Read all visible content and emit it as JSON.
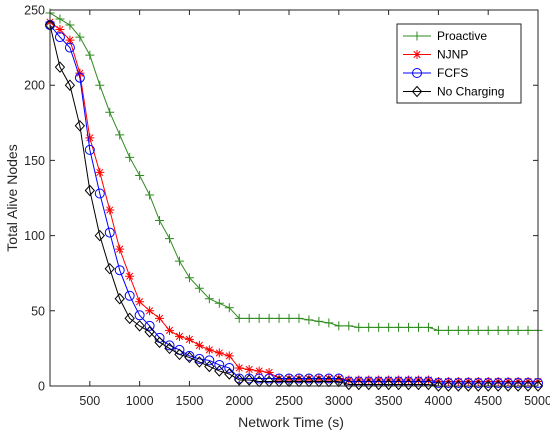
{
  "chart_data": {
    "type": "line",
    "xlabel": "Network Time (s)",
    "ylabel": "Total Alive Nodes",
    "xlim": [
      100,
      5000
    ],
    "ylim": [
      0,
      250
    ],
    "xticks": [
      500,
      1000,
      1500,
      2000,
      2500,
      3000,
      3500,
      4000,
      4500,
      5000
    ],
    "yticks": [
      0,
      50,
      100,
      150,
      200,
      250
    ],
    "grid": false,
    "legend_position": "top-right",
    "series": [
      {
        "name": "Proactive",
        "color": "#2e8b1f",
        "marker": "plus",
        "points": [
          [
            100,
            248
          ],
          [
            200,
            244
          ],
          [
            300,
            240
          ],
          [
            400,
            232
          ],
          [
            500,
            220
          ],
          [
            600,
            200
          ],
          [
            700,
            182
          ],
          [
            800,
            167
          ],
          [
            900,
            152
          ],
          [
            1000,
            140
          ],
          [
            1100,
            127
          ],
          [
            1200,
            110
          ],
          [
            1300,
            98
          ],
          [
            1400,
            83
          ],
          [
            1500,
            72
          ],
          [
            1600,
            65
          ],
          [
            1700,
            58
          ],
          [
            1800,
            55
          ],
          [
            1900,
            52
          ],
          [
            2000,
            45
          ],
          [
            2100,
            45
          ],
          [
            2200,
            45
          ],
          [
            2300,
            45
          ],
          [
            2400,
            45
          ],
          [
            2500,
            45
          ],
          [
            2600,
            45
          ],
          [
            2700,
            44
          ],
          [
            2800,
            43
          ],
          [
            2900,
            42
          ],
          [
            3000,
            40
          ],
          [
            3100,
            40
          ],
          [
            3200,
            39
          ],
          [
            3300,
            39
          ],
          [
            3400,
            39
          ],
          [
            3500,
            39
          ],
          [
            3600,
            39
          ],
          [
            3700,
            39
          ],
          [
            3800,
            39
          ],
          [
            3900,
            39
          ],
          [
            4000,
            37
          ],
          [
            4100,
            37
          ],
          [
            4200,
            37
          ],
          [
            4300,
            37
          ],
          [
            4400,
            37
          ],
          [
            4500,
            37
          ],
          [
            4600,
            37
          ],
          [
            4700,
            37
          ],
          [
            4800,
            37
          ],
          [
            4900,
            37
          ],
          [
            5000,
            37
          ]
        ]
      },
      {
        "name": "NJNP",
        "color": "#ff0000",
        "marker": "star",
        "points": [
          [
            100,
            242
          ],
          [
            200,
            237
          ],
          [
            300,
            230
          ],
          [
            400,
            208
          ],
          [
            500,
            165
          ],
          [
            600,
            142
          ],
          [
            700,
            117
          ],
          [
            800,
            91
          ],
          [
            900,
            73
          ],
          [
            1000,
            56
          ],
          [
            1100,
            50
          ],
          [
            1200,
            45
          ],
          [
            1300,
            37
          ],
          [
            1400,
            33
          ],
          [
            1500,
            31
          ],
          [
            1600,
            27
          ],
          [
            1700,
            24
          ],
          [
            1800,
            22
          ],
          [
            1900,
            20
          ],
          [
            2000,
            12
          ],
          [
            2100,
            11
          ],
          [
            2200,
            10
          ],
          [
            2300,
            9
          ],
          [
            2400,
            5
          ],
          [
            2500,
            5
          ],
          [
            2600,
            5
          ],
          [
            2700,
            5
          ],
          [
            2800,
            5
          ],
          [
            2900,
            5
          ],
          [
            3000,
            5
          ],
          [
            3100,
            4
          ],
          [
            3200,
            4
          ],
          [
            3300,
            4
          ],
          [
            3400,
            4
          ],
          [
            3500,
            4
          ],
          [
            3600,
            4
          ],
          [
            3700,
            4
          ],
          [
            3800,
            4
          ],
          [
            3900,
            4
          ],
          [
            4000,
            3
          ],
          [
            4100,
            3
          ],
          [
            4200,
            3
          ],
          [
            4300,
            3
          ],
          [
            4400,
            3
          ],
          [
            4500,
            3
          ],
          [
            4600,
            3
          ],
          [
            4700,
            3
          ],
          [
            4800,
            3
          ],
          [
            4900,
            3
          ],
          [
            5000,
            3
          ]
        ]
      },
      {
        "name": "FCFS",
        "color": "#0000ff",
        "marker": "circle",
        "points": [
          [
            100,
            240
          ],
          [
            200,
            232
          ],
          [
            300,
            225
          ],
          [
            400,
            205
          ],
          [
            500,
            157
          ],
          [
            600,
            128
          ],
          [
            700,
            102
          ],
          [
            800,
            77
          ],
          [
            900,
            60
          ],
          [
            1000,
            47
          ],
          [
            1100,
            40
          ],
          [
            1200,
            32
          ],
          [
            1300,
            27
          ],
          [
            1400,
            24
          ],
          [
            1500,
            20
          ],
          [
            1600,
            18
          ],
          [
            1700,
            17
          ],
          [
            1800,
            14
          ],
          [
            1900,
            12
          ],
          [
            2000,
            5
          ],
          [
            2100,
            5
          ],
          [
            2200,
            5
          ],
          [
            2300,
            5
          ],
          [
            2400,
            5
          ],
          [
            2500,
            5
          ],
          [
            2600,
            5
          ],
          [
            2700,
            5
          ],
          [
            2800,
            5
          ],
          [
            2900,
            5
          ],
          [
            3000,
            5
          ],
          [
            3100,
            3
          ],
          [
            3200,
            3
          ],
          [
            3300,
            3
          ],
          [
            3400,
            3
          ],
          [
            3500,
            3
          ],
          [
            3600,
            3
          ],
          [
            3700,
            3
          ],
          [
            3800,
            3
          ],
          [
            3900,
            3
          ],
          [
            4000,
            2
          ],
          [
            4100,
            2
          ],
          [
            4200,
            2
          ],
          [
            4300,
            2
          ],
          [
            4400,
            2
          ],
          [
            4500,
            2
          ],
          [
            4600,
            2
          ],
          [
            4700,
            2
          ],
          [
            4800,
            2
          ],
          [
            4900,
            2
          ],
          [
            5000,
            2
          ]
        ]
      },
      {
        "name": "No Charging",
        "color": "#000000",
        "marker": "diamond",
        "points": [
          [
            100,
            240
          ],
          [
            200,
            212
          ],
          [
            300,
            200
          ],
          [
            400,
            173
          ],
          [
            500,
            130
          ],
          [
            600,
            100
          ],
          [
            700,
            78
          ],
          [
            800,
            58
          ],
          [
            900,
            45
          ],
          [
            1000,
            40
          ],
          [
            1100,
            36
          ],
          [
            1200,
            29
          ],
          [
            1300,
            25
          ],
          [
            1400,
            21
          ],
          [
            1500,
            19
          ],
          [
            1600,
            16
          ],
          [
            1700,
            13
          ],
          [
            1800,
            10
          ],
          [
            1900,
            8
          ],
          [
            2000,
            4
          ],
          [
            2100,
            4
          ],
          [
            2200,
            3
          ],
          [
            2300,
            3
          ],
          [
            2400,
            3
          ],
          [
            2500,
            3
          ],
          [
            2600,
            3
          ],
          [
            2700,
            3
          ],
          [
            2800,
            3
          ],
          [
            2900,
            3
          ],
          [
            3000,
            3
          ],
          [
            3100,
            1
          ],
          [
            3200,
            1
          ],
          [
            3300,
            1
          ],
          [
            3400,
            1
          ],
          [
            3500,
            1
          ],
          [
            3600,
            1
          ],
          [
            3700,
            1
          ],
          [
            3800,
            1
          ],
          [
            3900,
            1
          ],
          [
            4000,
            0
          ],
          [
            4100,
            0
          ],
          [
            4200,
            0
          ],
          [
            4300,
            0
          ],
          [
            4400,
            0
          ],
          [
            4500,
            0
          ],
          [
            4600,
            0
          ],
          [
            4700,
            0
          ],
          [
            4800,
            0
          ],
          [
            4900,
            0
          ],
          [
            5000,
            0
          ]
        ]
      }
    ]
  }
}
